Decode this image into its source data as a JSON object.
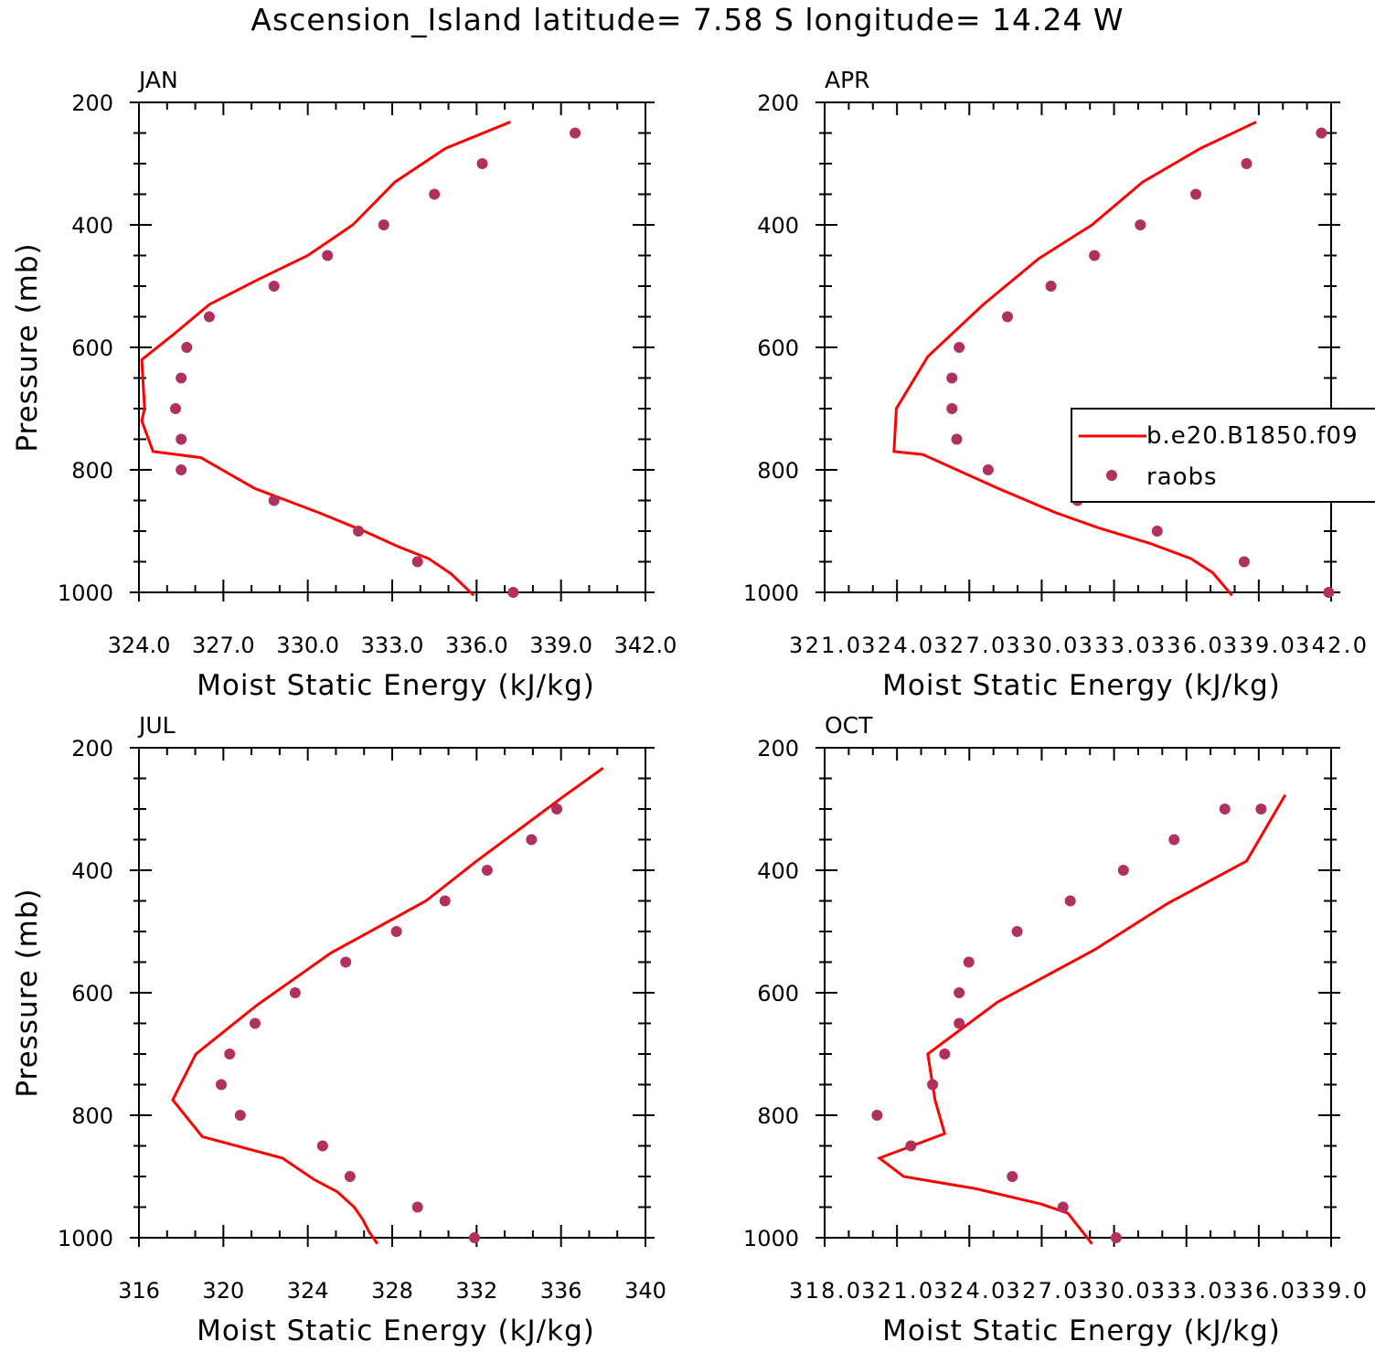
{
  "title": "Ascension_Island  latitude= 7.58 S longitude= 14.24 W",
  "colors": {
    "line": "#ff0000",
    "points": "#b03060",
    "axis": "#000000"
  },
  "chart_data": [
    {
      "type": "line",
      "panel_label": "JAN",
      "xlabel": "Moist Static Energy (kJ/kg)",
      "ylabel": "Pressure (mb)",
      "xlim": [
        324.0,
        342.0
      ],
      "xticks": [
        "324.0",
        "327.0",
        "330.0",
        "333.0",
        "336.0",
        "339.0",
        "342.0"
      ],
      "ylim": [
        1000,
        200
      ],
      "yticks": [
        "200",
        "400",
        "600",
        "800",
        "1000"
      ],
      "series": [
        {
          "kind": "line",
          "x": [
            335.9,
            335.1,
            334.3,
            333.2,
            332.0,
            330.4,
            328.1,
            326.2,
            324.5,
            324.1,
            324.2,
            324.1,
            325.2,
            326.5,
            328.2,
            330.0,
            331.6,
            333.1,
            334.9,
            337.2
          ],
          "y": [
            1005,
            970,
            945,
            925,
            900,
            870,
            830,
            780,
            770,
            720,
            700,
            620,
            580,
            530,
            490,
            450,
            400,
            330,
            275,
            232
          ]
        },
        {
          "kind": "scatter",
          "x": [
            337.3,
            333.9,
            331.8,
            328.8,
            325.5,
            325.5,
            325.3,
            325.5,
            325.7,
            326.5,
            328.8,
            330.7,
            332.7,
            334.5,
            336.2,
            339.5
          ],
          "y": [
            1000,
            950,
            900,
            850,
            800,
            750,
            700,
            650,
            600,
            550,
            500,
            450,
            400,
            350,
            300,
            250
          ]
        }
      ]
    },
    {
      "type": "line",
      "panel_label": "APR",
      "xlabel": "Moist Static Energy (kJ/kg)",
      "ylabel": "",
      "xlim": [
        321.03,
        342.0
      ],
      "xticks": [
        "321.0",
        "324.0",
        "327.0",
        "330.0",
        "333.0",
        "336.0",
        "339.0",
        "342.0"
      ],
      "ylim": [
        1000,
        200
      ],
      "yticks": [
        "200",
        "400",
        "600",
        "800",
        "1000"
      ],
      "legend_placement": "right",
      "legend": [
        "b.e20.B1850.f09",
        "raobs"
      ],
      "series": [
        {
          "name": "b.e20.B1850.f09",
          "kind": "line",
          "x": [
            337.9,
            337.4,
            337.1,
            336.2,
            334.5,
            332.4,
            330.6,
            328.2,
            325.1,
            323.9,
            324.0,
            325.3,
            327.6,
            329.9,
            332.1,
            334.2,
            336.6,
            338.9
          ],
          "y": [
            1005,
            982,
            968,
            945,
            920,
            895,
            870,
            830,
            775,
            770,
            700,
            615,
            530,
            455,
            400,
            330,
            275,
            232
          ]
        },
        {
          "name": "raobs",
          "kind": "scatter",
          "x": [
            341.9,
            338.4,
            334.8,
            331.5,
            327.8,
            326.5,
            326.3,
            326.3,
            326.6,
            328.6,
            330.4,
            332.2,
            334.1,
            336.4,
            338.5,
            341.6
          ],
          "y": [
            1000,
            950,
            900,
            850,
            800,
            750,
            700,
            650,
            600,
            550,
            500,
            450,
            400,
            350,
            300,
            250
          ]
        }
      ]
    },
    {
      "type": "line",
      "panel_label": "JUL",
      "xlabel": "Moist Static Energy (kJ/kg)",
      "ylabel": "Pressure (mb)",
      "xlim": [
        316,
        340
      ],
      "xticks": [
        "316",
        "320",
        "324",
        "328",
        "332",
        "336",
        "340"
      ],
      "ylim": [
        1000,
        200
      ],
      "yticks": [
        "200",
        "400",
        "600",
        "800",
        "1000"
      ],
      "series": [
        {
          "kind": "line",
          "x": [
            327.3,
            326.9,
            326.6,
            326.2,
            325.4,
            324.3,
            322.8,
            319.0,
            317.6,
            318.7,
            321.6,
            325.1,
            329.6,
            332.0,
            336.1,
            338.0
          ],
          "y": [
            1010,
            990,
            970,
            950,
            925,
            905,
            870,
            835,
            775,
            700,
            620,
            535,
            450,
            385,
            280,
            233
          ]
        },
        {
          "kind": "scatter",
          "x": [
            331.9,
            329.2,
            326.0,
            324.7,
            320.8,
            319.9,
            320.3,
            321.5,
            323.4,
            325.8,
            328.2,
            330.5,
            332.5,
            334.6,
            335.8
          ],
          "y": [
            1000,
            950,
            900,
            850,
            800,
            750,
            700,
            650,
            600,
            550,
            500,
            450,
            400,
            350,
            300
          ]
        }
      ]
    },
    {
      "type": "line",
      "panel_label": "OCT",
      "xlabel": "Moist Static Energy (kJ/kg)",
      "ylabel": "",
      "xlim": [
        318.03,
        339.0
      ],
      "xticks": [
        "318.0",
        "321.0",
        "324.0",
        "327.0",
        "330.0",
        "333.0",
        "336.0",
        "339.0"
      ],
      "ylim": [
        1000,
        200
      ],
      "yticks": [
        "200",
        "400",
        "600",
        "800",
        "1000"
      ],
      "series": [
        {
          "kind": "line",
          "x": [
            329.1,
            328.5,
            328.1,
            327.0,
            324.3,
            321.3,
            320.3,
            323.0,
            322.6,
            322.3,
            325.2,
            329.2,
            332.2,
            335.5,
            337.1
          ],
          "y": [
            1010,
            980,
            960,
            945,
            920,
            900,
            870,
            830,
            775,
            700,
            615,
            530,
            455,
            385,
            277
          ]
        },
        {
          "kind": "scatter",
          "x": [
            330.1,
            327.9,
            325.8,
            321.6,
            320.2,
            322.5,
            323.0,
            323.6,
            323.6,
            324.0,
            326.0,
            328.2,
            330.4,
            332.5,
            334.6,
            336.1
          ],
          "y": [
            1000,
            950,
            900,
            850,
            800,
            750,
            700,
            650,
            600,
            550,
            500,
            450,
            400,
            350,
            300,
            300
          ]
        }
      ]
    }
  ]
}
